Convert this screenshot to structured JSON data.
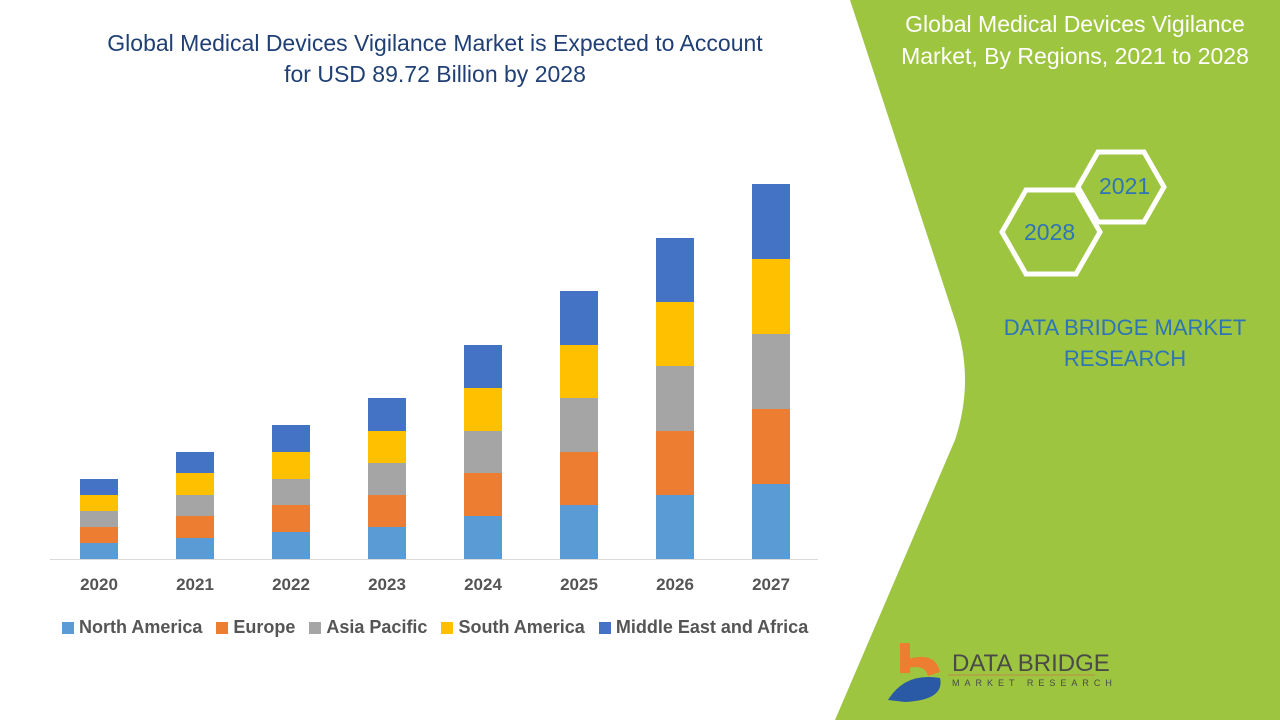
{
  "title": "Global Medical Devices Vigilance Market is Expected to Account for USD 89.72 Billion by 2028",
  "panel": {
    "title": "Global Medical Devices Vigilance Market, By Regions, 2021 to 2028",
    "hex_year_1": "2021",
    "hex_year_2": "2028",
    "brand": "DATA BRIDGE MARKET RESEARCH",
    "logo_text": "DATA BRIDGE",
    "logo_sub": "MARKET RESEARCH",
    "color": "#9dc53f"
  },
  "chart_data": {
    "type": "bar",
    "stacked": true,
    "title": "",
    "xlabel": "",
    "ylabel": "",
    "ylim": [
      0,
      400
    ],
    "grid": false,
    "legend_position": "bottom",
    "categories": [
      "2020",
      "2021",
      "2022",
      "2023",
      "2024",
      "2025",
      "2026",
      "2027"
    ],
    "series": [
      {
        "name": "North America",
        "color": "#5b9bd5",
        "values": [
          16,
          21,
          27,
          32,
          43,
          54,
          64,
          75
        ]
      },
      {
        "name": "Europe",
        "color": "#ed7d31",
        "values": [
          16,
          22,
          27,
          32,
          43,
          53,
          64,
          75
        ]
      },
      {
        "name": "Asia Pacific",
        "color": "#a5a5a5",
        "values": [
          16,
          21,
          26,
          32,
          42,
          54,
          65,
          75
        ]
      },
      {
        "name": "South America",
        "color": "#ffc000",
        "values": [
          16,
          22,
          27,
          32,
          43,
          53,
          64,
          75
        ]
      },
      {
        "name": "Middle East and Africa",
        "color": "#4472c4",
        "values": [
          16,
          21,
          27,
          33,
          43,
          54,
          64,
          75
        ]
      }
    ]
  }
}
